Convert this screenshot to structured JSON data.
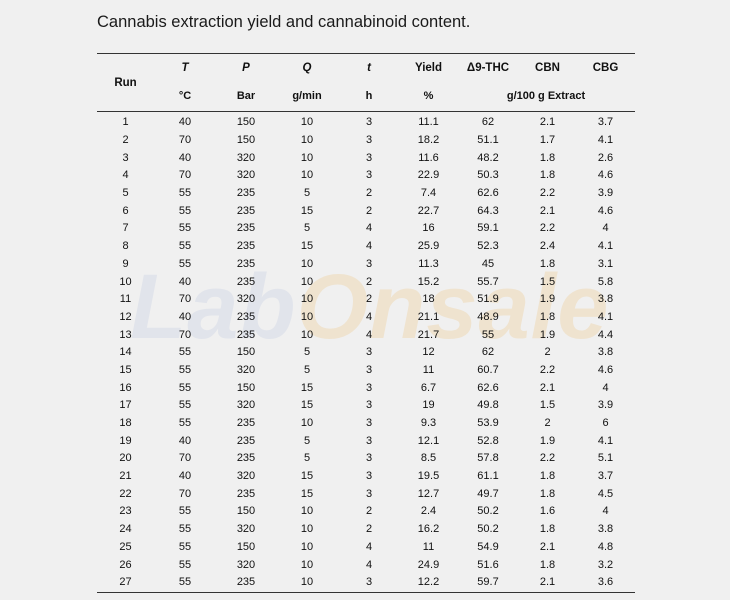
{
  "caption": "Cannabis extraction yield and cannabinoid content.",
  "watermark": {
    "part_a": "Lab",
    "part_b": "Onsale"
  },
  "table": {
    "header_row1": [
      "Run",
      "T",
      "P",
      "Q",
      "t",
      "Yield",
      "Δ9-THC",
      "CBN",
      "CBG"
    ],
    "header_row2": {
      "T": "°C",
      "P": "Bar",
      "Q": "g/min",
      "t": "h",
      "Yield": "%",
      "extract_unit": "g/100 g Extract"
    },
    "rows": [
      [
        "1",
        "40",
        "150",
        "10",
        "3",
        "11.1",
        "62",
        "2.1",
        "3.7"
      ],
      [
        "2",
        "70",
        "150",
        "10",
        "3",
        "18.2",
        "51.1",
        "1.7",
        "4.1"
      ],
      [
        "3",
        "40",
        "320",
        "10",
        "3",
        "11.6",
        "48.2",
        "1.8",
        "2.6"
      ],
      [
        "4",
        "70",
        "320",
        "10",
        "3",
        "22.9",
        "50.3",
        "1.8",
        "4.6"
      ],
      [
        "5",
        "55",
        "235",
        "5",
        "2",
        "7.4",
        "62.6",
        "2.2",
        "3.9"
      ],
      [
        "6",
        "55",
        "235",
        "15",
        "2",
        "22.7",
        "64.3",
        "2.1",
        "4.6"
      ],
      [
        "7",
        "55",
        "235",
        "5",
        "4",
        "16",
        "59.1",
        "2.2",
        "4"
      ],
      [
        "8",
        "55",
        "235",
        "15",
        "4",
        "25.9",
        "52.3",
        "2.4",
        "4.1"
      ],
      [
        "9",
        "55",
        "235",
        "10",
        "3",
        "11.3",
        "45",
        "1.8",
        "3.1"
      ],
      [
        "10",
        "40",
        "235",
        "10",
        "2",
        "15.2",
        "55.7",
        "1.5",
        "5.8"
      ],
      [
        "11",
        "70",
        "320",
        "10",
        "2",
        "18",
        "51.9",
        "1.9",
        "3.8"
      ],
      [
        "12",
        "40",
        "235",
        "10",
        "4",
        "21.1",
        "48.9",
        "1.8",
        "4.1"
      ],
      [
        "13",
        "70",
        "235",
        "10",
        "4",
        "21.7",
        "55",
        "1.9",
        "4.4"
      ],
      [
        "14",
        "55",
        "150",
        "5",
        "3",
        "12",
        "62",
        "2",
        "3.8"
      ],
      [
        "15",
        "55",
        "320",
        "5",
        "3",
        "11",
        "60.7",
        "2.2",
        "4.6"
      ],
      [
        "16",
        "55",
        "150",
        "15",
        "3",
        "6.7",
        "62.6",
        "2.1",
        "4"
      ],
      [
        "17",
        "55",
        "320",
        "15",
        "3",
        "19",
        "49.8",
        "1.5",
        "3.9"
      ],
      [
        "18",
        "55",
        "235",
        "10",
        "3",
        "9.3",
        "53.9",
        "2",
        "6"
      ],
      [
        "19",
        "40",
        "235",
        "5",
        "3",
        "12.1",
        "52.8",
        "1.9",
        "4.1"
      ],
      [
        "20",
        "70",
        "235",
        "5",
        "3",
        "8.5",
        "57.8",
        "2.2",
        "5.1"
      ],
      [
        "21",
        "40",
        "320",
        "15",
        "3",
        "19.5",
        "61.1",
        "1.8",
        "3.7"
      ],
      [
        "22",
        "70",
        "235",
        "15",
        "3",
        "12.7",
        "49.7",
        "1.8",
        "4.5"
      ],
      [
        "23",
        "55",
        "150",
        "10",
        "2",
        "2.4",
        "50.2",
        "1.6",
        "4"
      ],
      [
        "24",
        "55",
        "320",
        "10",
        "2",
        "16.2",
        "50.2",
        "1.8",
        "3.8"
      ],
      [
        "25",
        "55",
        "150",
        "10",
        "4",
        "11",
        "54.9",
        "2.1",
        "4.8"
      ],
      [
        "26",
        "55",
        "320",
        "10",
        "4",
        "24.9",
        "51.6",
        "1.8",
        "3.2"
      ],
      [
        "27",
        "55",
        "235",
        "10",
        "3",
        "12.2",
        "59.7",
        "2.1",
        "3.6"
      ]
    ]
  }
}
